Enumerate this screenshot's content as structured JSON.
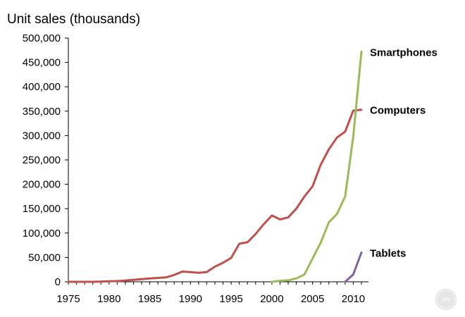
{
  "chart_data": {
    "type": "line",
    "title": "Unit sales (thousands)",
    "xlabel": "",
    "ylabel": "",
    "xlim": [
      1975,
      2011
    ],
    "ylim": [
      0,
      500000
    ],
    "grid": false,
    "legend": "none (labels placed at line ends, right)",
    "x_ticks": [
      1975,
      1980,
      1985,
      1990,
      1995,
      2000,
      2005,
      2010
    ],
    "x_tick_labels": [
      "1975",
      "1980",
      "1985",
      "1990",
      "1995",
      "2000",
      "2005",
      "2010"
    ],
    "y_ticks": [
      0,
      50000,
      100000,
      150000,
      200000,
      250000,
      300000,
      350000,
      400000,
      450000,
      500000
    ],
    "y_tick_labels": [
      "0",
      "50,000",
      "100,000",
      "150,000",
      "200,000",
      "250,000",
      "300,000",
      "350,000",
      "400,000",
      "450,000",
      "500,000"
    ],
    "series": [
      {
        "name": "Computers",
        "color": "#c0504d",
        "x": [
          1975,
          1976,
          1977,
          1978,
          1979,
          1980,
          1981,
          1982,
          1983,
          1984,
          1985,
          1986,
          1987,
          1988,
          1989,
          1990,
          1991,
          1992,
          1993,
          1994,
          1995,
          1996,
          1997,
          1998,
          1999,
          2000,
          2001,
          2002,
          2003,
          2004,
          2005,
          2006,
          2007,
          2008,
          2009,
          2010,
          2011
        ],
        "values": [
          0,
          0,
          0,
          0,
          500,
          1000,
          1500,
          2500,
          4000,
          5500,
          7000,
          8000,
          9000,
          14000,
          21000,
          20000,
          18500,
          20000,
          31000,
          39000,
          49000,
          78000,
          81000,
          98000,
          118000,
          136000,
          128000,
          132000,
          150000,
          175000,
          196000,
          240000,
          272000,
          296000,
          308000,
          351000,
          353000
        ]
      },
      {
        "name": "Smartphones",
        "color": "#9bbb59",
        "x": [
          2000,
          2001,
          2002,
          2003,
          2004,
          2005,
          2006,
          2007,
          2008,
          2009,
          2010,
          2011
        ],
        "values": [
          0,
          2000,
          3000,
          7000,
          15000,
          48000,
          80000,
          122000,
          139000,
          175000,
          298000,
          472000
        ]
      },
      {
        "name": "Tablets",
        "color": "#8064a2",
        "x": [
          2009,
          2010,
          2011
        ],
        "values": [
          0,
          15000,
          60000
        ]
      }
    ]
  },
  "watermark_text": "ars"
}
